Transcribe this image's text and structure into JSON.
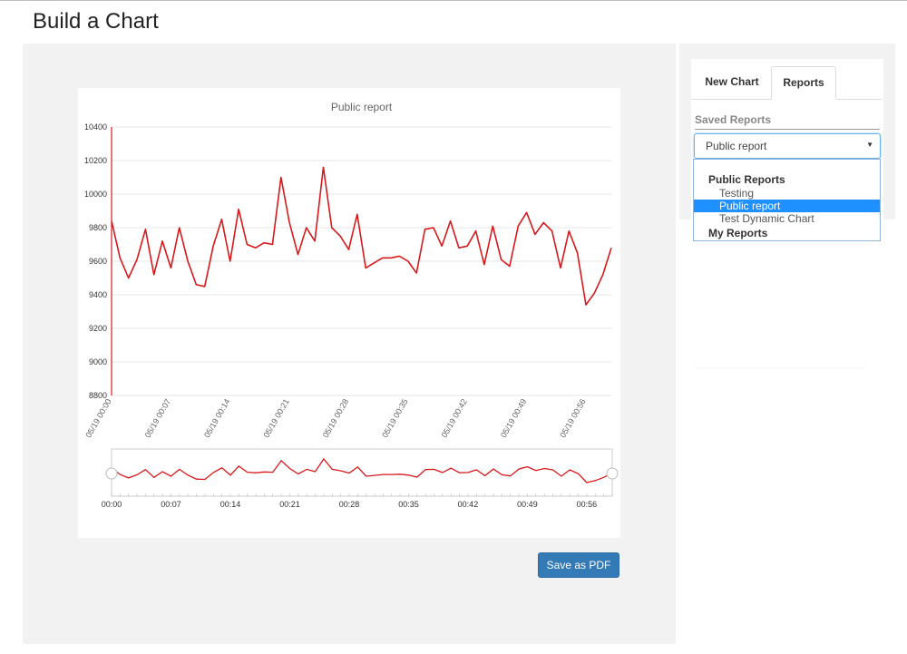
{
  "page": {
    "title": "Build a Chart"
  },
  "actions": {
    "save_pdf_label": "Save as PDF"
  },
  "sidebar": {
    "tabs": [
      {
        "label": "New Chart",
        "active": false
      },
      {
        "label": "Reports",
        "active": true
      }
    ],
    "saved_reports_label": "Saved Reports",
    "select_value": "Public report",
    "select_arrow_icon": "caret-down-icon",
    "dropdown": {
      "groups": [
        {
          "label": "Public Reports",
          "items": [
            "Testing",
            "Public report",
            "Test Dynamic Chart"
          ]
        },
        {
          "label": "My Reports",
          "items": []
        }
      ],
      "selected": "Public report",
      "highlight_color": "#1e90ff"
    }
  },
  "colors": {
    "series": "#d7191c",
    "button": "#337ab7",
    "panel_bg": "#f2f2f2"
  },
  "chart_data": {
    "type": "line",
    "title": "Public report",
    "xlabel": "",
    "ylabel": "",
    "ylim": [
      8800,
      10400
    ],
    "yticks": [
      8800,
      9000,
      9200,
      9400,
      9600,
      9800,
      10000,
      10200,
      10400
    ],
    "xtick_labels": [
      "05/19 00:00",
      "05/19 00:07",
      "05/19 00:14",
      "05/19 00:21",
      "05/19 00:28",
      "05/19 00:35",
      "05/19 00:42",
      "05/19 00:49",
      "05/19 00:56"
    ],
    "grid": true,
    "legend": "none",
    "series": [
      {
        "values": [
          9840,
          9620,
          9500,
          9610,
          9790,
          9520,
          9720,
          9560,
          9800,
          9600,
          9460,
          9450,
          9690,
          9850,
          9600,
          9910,
          9700,
          9680,
          9710,
          9700,
          10100,
          9830,
          9640,
          9800,
          9720,
          10160,
          9800,
          9750,
          9670,
          9880,
          9560,
          9590,
          9620,
          9620,
          9630,
          9600,
          9530,
          9790,
          9800,
          9690,
          9840,
          9680,
          9690,
          9780,
          9580,
          9810,
          9610,
          9570,
          9810,
          9890,
          9760,
          9830,
          9780,
          9560,
          9780,
          9650,
          9340,
          9410,
          9520,
          9680
        ]
      }
    ],
    "navigator": {
      "tick_labels": [
        "00:00",
        "00:07",
        "00:14",
        "00:21",
        "00:28",
        "00:35",
        "00:42",
        "00:49",
        "00:56"
      ]
    }
  }
}
